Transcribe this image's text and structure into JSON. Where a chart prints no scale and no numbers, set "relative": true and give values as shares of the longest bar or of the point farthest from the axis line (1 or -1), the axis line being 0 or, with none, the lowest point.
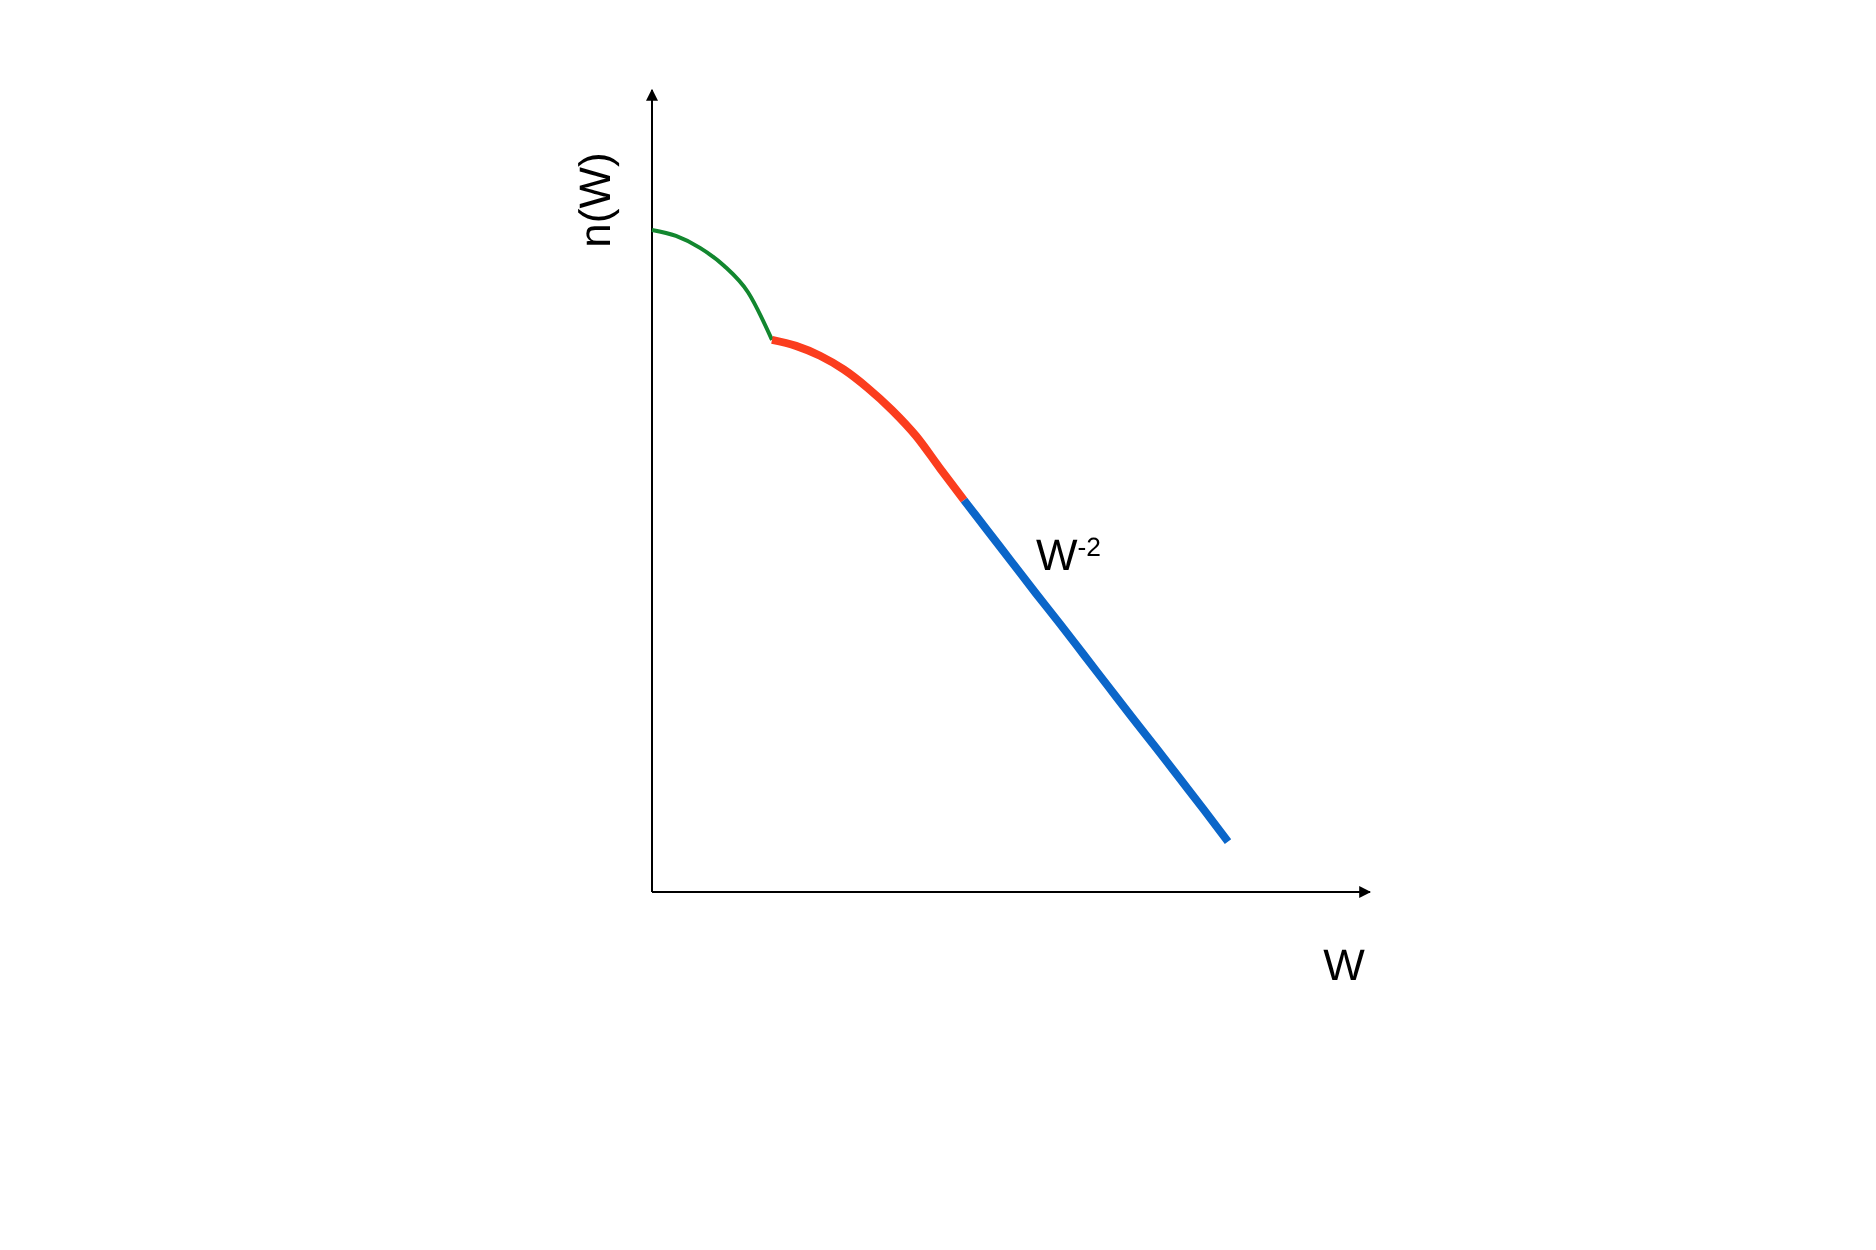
{
  "chart_data": {
    "type": "line",
    "relative": true,
    "xlabel": "W",
    "ylabel": "n(W)",
    "marker": "none",
    "line_style": "solid",
    "categories": [
      null,
      null,
      null,
      null,
      null,
      null,
      null,
      null,
      null,
      null,
      null,
      null,
      null,
      null,
      null,
      null,
      null,
      null,
      null,
      null,
      null,
      null,
      null,
      null,
      null
    ],
    "series": [
      {
        "color": "#12872f",
        "values": [
          1,
          0.991,
          0.973,
          0.946,
          0.906,
          0.834,
          null,
          null,
          null,
          null,
          null,
          null,
          null,
          null,
          null,
          null,
          null,
          null,
          null,
          null,
          null,
          null,
          null,
          null,
          null
        ]
      },
      {
        "color": "#fb3d1e",
        "values": [
          null,
          null,
          null,
          null,
          null,
          0.834,
          0.825,
          0.81,
          0.789,
          0.761,
          0.728,
          0.689,
          0.64,
          0.592,
          null,
          null,
          null,
          null,
          null,
          null,
          null,
          null,
          null,
          null,
          null
        ]
      },
      {
        "color": "#0b66c9",
        "values": [
          null,
          null,
          null,
          null,
          null,
          null,
          null,
          null,
          null,
          null,
          null,
          null,
          null,
          0.592,
          0.545,
          0.498,
          0.451,
          0.405,
          0.358,
          0.311,
          0.264,
          0.218,
          0.171,
          0.124,
          0.076
        ]
      }
    ],
    "annotations": [
      "W$^{-2}$"
    ]
  }
}
